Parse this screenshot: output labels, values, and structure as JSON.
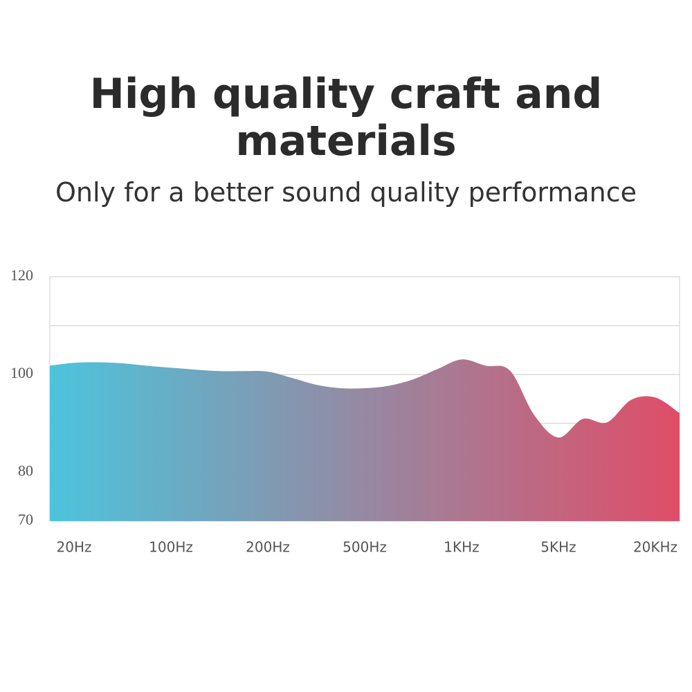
{
  "chart_data": {
    "type": "area",
    "title": "High quality craft and materials",
    "subtitle": "Only for a better sound quality performance",
    "categories": [
      null,
      "20Hz",
      null,
      null,
      null,
      "100Hz",
      null,
      null,
      null,
      "200Hz",
      null,
      null,
      null,
      "500Hz",
      null,
      null,
      null,
      "1KHz",
      null,
      null,
      null,
      "5KHz",
      null,
      null,
      null,
      "20KHz",
      null
    ],
    "values": [
      101.8,
      102.4,
      102.5,
      102.3,
      101.8,
      101.4,
      101.0,
      100.7,
      100.7,
      100.6,
      99.3,
      97.9,
      97.2,
      97.2,
      97.7,
      99.0,
      101.1,
      103.1,
      101.8,
      100.8,
      91.7,
      87.1,
      90.9,
      90.2,
      94.8,
      95.3,
      92.1
    ],
    "colors": [
      "#4cc4dc",
      "#e04d68"
    ],
    "ylim": [
      70,
      120
    ],
    "yticks": [
      70,
      80,
      100,
      120
    ],
    "ygrid": [
      90,
      110
    ],
    "grid": true
  }
}
